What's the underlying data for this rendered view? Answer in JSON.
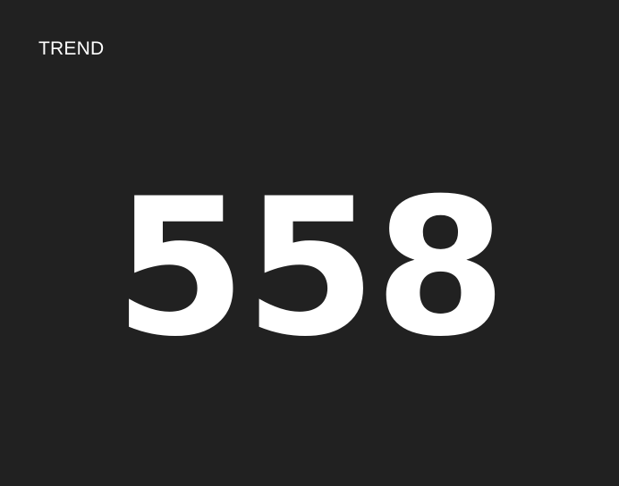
{
  "widget": {
    "title": "TREND",
    "value": "558",
    "background_color": "#212121",
    "text_color": "#ffffff"
  }
}
